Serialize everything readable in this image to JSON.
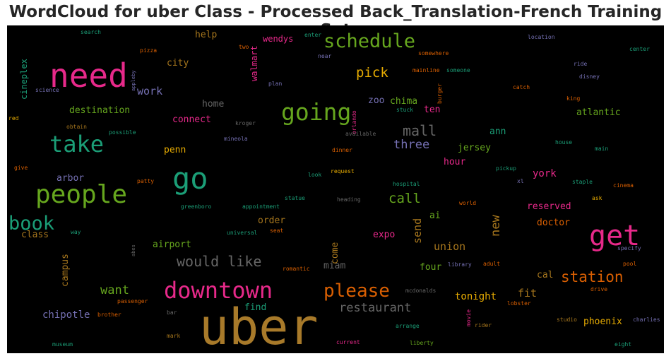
{
  "chart_data": {
    "type": "wordcloud",
    "title": "WordCloud for uber Class - Processed Back_Translation-French Training Set",
    "background": "#000000",
    "words": [
      {
        "text": "uber",
        "color": "#a87a2a"
      },
      {
        "text": "need",
        "color": "#e7298a"
      },
      {
        "text": "people",
        "color": "#66a61e"
      },
      {
        "text": "go",
        "color": "#1b9e77"
      },
      {
        "text": "get",
        "color": "#e7298a"
      },
      {
        "text": "downtown",
        "color": "#e7298a"
      },
      {
        "text": "take",
        "color": "#1b9e77"
      },
      {
        "text": "going",
        "color": "#66a61e"
      },
      {
        "text": "schedule",
        "color": "#66a61e"
      },
      {
        "text": "book",
        "color": "#1b9e77"
      },
      {
        "text": "please",
        "color": "#d95f02"
      },
      {
        "text": "station",
        "color": "#d95f02"
      },
      {
        "text": "would like",
        "color": "#666666"
      },
      {
        "text": "mall",
        "color": "#666666"
      },
      {
        "text": "restaurant",
        "color": "#666666"
      },
      {
        "text": "call",
        "color": "#66a61e"
      },
      {
        "text": "pick",
        "color": "#e6ab02"
      },
      {
        "text": "three",
        "color": "#7570b3"
      },
      {
        "text": "want",
        "color": "#66a61e"
      },
      {
        "text": "union",
        "color": "#a6761d"
      },
      {
        "text": "chipotle",
        "color": "#7570b3"
      },
      {
        "text": "new",
        "color": "#a6761d"
      },
      {
        "text": "send",
        "color": "#a6761d"
      },
      {
        "text": "tonight",
        "color": "#e6ab02"
      },
      {
        "text": "fit",
        "color": "#a6761d"
      },
      {
        "text": "phoenix",
        "color": "#e6ab02"
      },
      {
        "text": "doctor",
        "color": "#d95f02"
      },
      {
        "text": "reserved",
        "color": "#e7298a"
      },
      {
        "text": "york",
        "color": "#e7298a"
      },
      {
        "text": "jersey",
        "color": "#66a61e"
      },
      {
        "text": "ann",
        "color": "#1b9e77"
      },
      {
        "text": "atlantic",
        "color": "#66a61e"
      },
      {
        "text": "chima",
        "color": "#66a61e"
      },
      {
        "text": "zoo",
        "color": "#7570b3"
      },
      {
        "text": "ten",
        "color": "#e7298a"
      },
      {
        "text": "work",
        "color": "#7570b3"
      },
      {
        "text": "city",
        "color": "#a6761d"
      },
      {
        "text": "help",
        "color": "#a6761d"
      },
      {
        "text": "destination",
        "color": "#66a61e"
      },
      {
        "text": "home",
        "color": "#666666"
      },
      {
        "text": "connect",
        "color": "#e7298a"
      },
      {
        "text": "penn",
        "color": "#e6ab02"
      },
      {
        "text": "arbor",
        "color": "#7570b3"
      },
      {
        "text": "airport",
        "color": "#66a61e"
      },
      {
        "text": "order",
        "color": "#a6761d"
      },
      {
        "text": "expo",
        "color": "#e7298a"
      },
      {
        "text": "miam",
        "color": "#666666"
      },
      {
        "text": "four",
        "color": "#66a61e"
      },
      {
        "text": "cal",
        "color": "#a6761d"
      },
      {
        "text": "find",
        "color": "#1b9e77"
      },
      {
        "text": "come",
        "color": "#a6761d"
      },
      {
        "text": "ai",
        "color": "#66a61e"
      },
      {
        "text": "hour",
        "color": "#e7298a"
      },
      {
        "text": "campus",
        "color": "#a6761d"
      },
      {
        "text": "class",
        "color": "#a6761d"
      },
      {
        "text": "wendys",
        "color": "#e7298a"
      },
      {
        "text": "walmart",
        "color": "#e7298a"
      },
      {
        "text": "cineplex",
        "color": "#1b9e77"
      },
      {
        "text": "search",
        "color": "#1b9e77"
      },
      {
        "text": "two",
        "color": "#d95f02"
      },
      {
        "text": "enter",
        "color": "#1b9e77"
      },
      {
        "text": "location",
        "color": "#7570b3"
      },
      {
        "text": "center",
        "color": "#1b9e77"
      },
      {
        "text": "pizza",
        "color": "#d95f02"
      },
      {
        "text": "near",
        "color": "#7570b3"
      },
      {
        "text": "somewhere",
        "color": "#d95f02"
      },
      {
        "text": "ride",
        "color": "#7570b3"
      },
      {
        "text": "appleby",
        "color": "#7570b3"
      },
      {
        "text": "mainline",
        "color": "#d95f02"
      },
      {
        "text": "someone",
        "color": "#1b9e77"
      },
      {
        "text": "disney",
        "color": "#7570b3"
      },
      {
        "text": "science",
        "color": "#7570b3"
      },
      {
        "text": "plan",
        "color": "#7570b3"
      },
      {
        "text": "burger",
        "color": "#d95f02"
      },
      {
        "text": "catch",
        "color": "#d95f02"
      },
      {
        "text": "king",
        "color": "#d95f02"
      },
      {
        "text": "red",
        "color": "#e6ab02"
      },
      {
        "text": "obtain",
        "color": "#a6761d"
      },
      {
        "text": "kroger",
        "color": "#666666"
      },
      {
        "text": "orlando",
        "color": "#e7298a"
      },
      {
        "text": "stuck",
        "color": "#1b9e77"
      },
      {
        "text": "possible",
        "color": "#1b9e77"
      },
      {
        "text": "mineola",
        "color": "#7570b3"
      },
      {
        "text": "available",
        "color": "#666666"
      },
      {
        "text": "house",
        "color": "#1b9e77"
      },
      {
        "text": "main",
        "color": "#1b9e77"
      },
      {
        "text": "dinner",
        "color": "#d95f02"
      },
      {
        "text": "give",
        "color": "#d95f02"
      },
      {
        "text": "look",
        "color": "#1b9e77"
      },
      {
        "text": "request",
        "color": "#e6ab02"
      },
      {
        "text": "pickup",
        "color": "#1b9e77"
      },
      {
        "text": "patty",
        "color": "#d95f02"
      },
      {
        "text": "hospital",
        "color": "#1b9e77"
      },
      {
        "text": "xl",
        "color": "#7570b3"
      },
      {
        "text": "staple",
        "color": "#1b9e77"
      },
      {
        "text": "cinema",
        "color": "#d95f02"
      },
      {
        "text": "statue",
        "color": "#1b9e77"
      },
      {
        "text": "heading",
        "color": "#666666"
      },
      {
        "text": "ask",
        "color": "#e6ab02"
      },
      {
        "text": "greenboro",
        "color": "#1b9e77"
      },
      {
        "text": "appointment",
        "color": "#1b9e77"
      },
      {
        "text": "world",
        "color": "#d95f02"
      },
      {
        "text": "seat",
        "color": "#d95f02"
      },
      {
        "text": "way",
        "color": "#1b9e77"
      },
      {
        "text": "universal",
        "color": "#1b9e77"
      },
      {
        "text": "abes",
        "color": "#666666"
      },
      {
        "text": "specify",
        "color": "#7570b3"
      },
      {
        "text": "pool",
        "color": "#d95f02"
      },
      {
        "text": "romantic",
        "color": "#d95f02"
      },
      {
        "text": "library",
        "color": "#7570b3"
      },
      {
        "text": "adult",
        "color": "#d95f02"
      },
      {
        "text": "drive",
        "color": "#d95f02"
      },
      {
        "text": "passenger",
        "color": "#d95f02"
      },
      {
        "text": "mcdonalds",
        "color": "#666666"
      },
      {
        "text": "lobster",
        "color": "#d95f02"
      },
      {
        "text": "brother",
        "color": "#d95f02"
      },
      {
        "text": "bar",
        "color": "#666666"
      },
      {
        "text": "movie",
        "color": "#e7298a"
      },
      {
        "text": "studio",
        "color": "#a6761d"
      },
      {
        "text": "charlies",
        "color": "#7570b3"
      },
      {
        "text": "rider",
        "color": "#a6761d"
      },
      {
        "text": "mark",
        "color": "#a6761d"
      },
      {
        "text": "arrange",
        "color": "#1b9e77"
      },
      {
        "text": "museum",
        "color": "#1b9e77"
      },
      {
        "text": "current",
        "color": "#e7298a"
      },
      {
        "text": "liberty",
        "color": "#66a61e"
      },
      {
        "text": "eight",
        "color": "#1b9e77"
      }
    ]
  }
}
